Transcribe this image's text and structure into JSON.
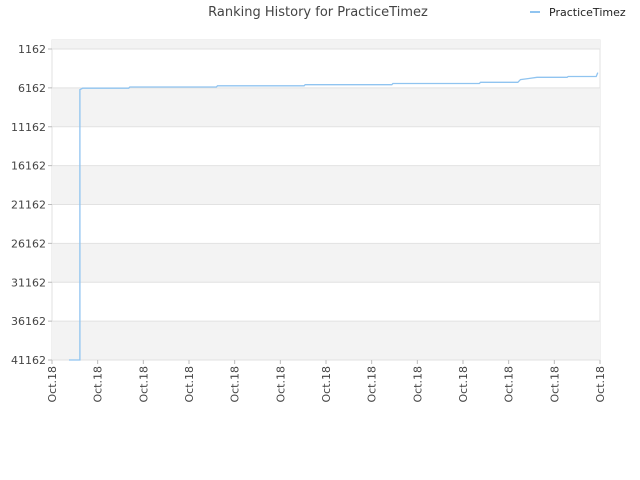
{
  "chart_data": {
    "type": "line",
    "title": "Ranking History for PracticeTimez",
    "xlabel": "",
    "ylabel": "",
    "y_reversed": true,
    "ylim": [
      41162,
      1162
    ],
    "y_ticks": [
      1162,
      6162,
      11162,
      16162,
      21162,
      26162,
      31162,
      36162,
      41162
    ],
    "x_tick_labels": [
      "Oct.18",
      "Oct.18",
      "Oct.18",
      "Oct.18",
      "Oct.18",
      "Oct.18",
      "Oct.18",
      "Oct.18",
      "Oct.18",
      "Oct.18",
      "Oct.18",
      "Oct.18",
      "Oct.18"
    ],
    "x_range": [
      0,
      100
    ],
    "legend": {
      "position": "top-right"
    },
    "grid": true,
    "series": [
      {
        "name": "PracticeTimez",
        "color": "#90c4f0",
        "points": [
          [
            3.1,
            41162
          ],
          [
            5.1,
            41162
          ],
          [
            5.1,
            6400
          ],
          [
            5.6,
            6200
          ],
          [
            14.0,
            6200
          ],
          [
            14.2,
            6050
          ],
          [
            30.0,
            6050
          ],
          [
            30.2,
            5900
          ],
          [
            46.0,
            5900
          ],
          [
            46.2,
            5750
          ],
          [
            62.0,
            5750
          ],
          [
            62.2,
            5600
          ],
          [
            78.0,
            5600
          ],
          [
            78.2,
            5450
          ],
          [
            85.0,
            5450
          ],
          [
            85.5,
            5100
          ],
          [
            87.0,
            4950
          ],
          [
            88.5,
            4800
          ],
          [
            94.0,
            4800
          ],
          [
            94.2,
            4700
          ],
          [
            99.3,
            4700
          ],
          [
            99.6,
            4200
          ]
        ]
      }
    ]
  }
}
